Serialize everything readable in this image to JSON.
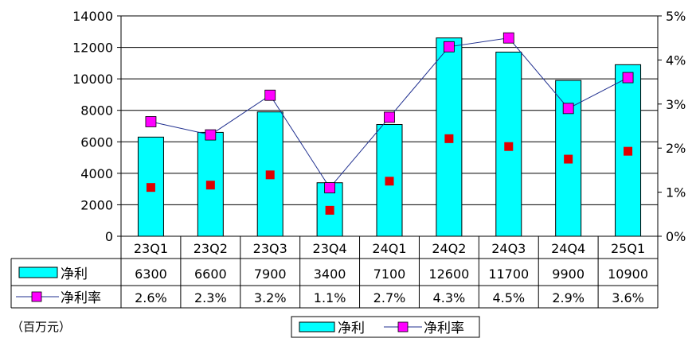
{
  "chart_data": {
    "type": "bar",
    "categories": [
      "23Q1",
      "23Q2",
      "23Q3",
      "23Q4",
      "24Q1",
      "24Q2",
      "24Q3",
      "24Q4",
      "25Q1"
    ],
    "series": [
      {
        "name": "净利",
        "type": "bar",
        "axis": "left",
        "values": [
          6300,
          6600,
          7900,
          3400,
          7100,
          12600,
          11700,
          9900,
          10900
        ],
        "color": "#00FFFF"
      },
      {
        "name": "净利率",
        "type": "line",
        "axis": "right",
        "marker": "square",
        "values": [
          2.6,
          2.3,
          3.2,
          1.1,
          2.7,
          4.3,
          4.5,
          2.9,
          3.6
        ],
        "color": "#FF00FF"
      }
    ],
    "second_markers": {
      "color": "#E00000",
      "axis": "left",
      "values": [
        3100,
        3250,
        3900,
        1650,
        3500,
        6200,
        5700,
        4900,
        5400
      ]
    },
    "table_rows": [
      {
        "label": "净利",
        "values": [
          "6300",
          "6600",
          "7900",
          "3400",
          "7100",
          "12600",
          "11700",
          "9900",
          "10900"
        ]
      },
      {
        "label": "净利率",
        "values": [
          "2.6%",
          "2.3%",
          "3.2%",
          "1.1%",
          "2.7%",
          "4.3%",
          "4.5%",
          "2.9%",
          "3.6%"
        ]
      }
    ],
    "y_left": {
      "min": 0,
      "max": 14000,
      "ticks": [
        0,
        2000,
        4000,
        6000,
        8000,
        10000,
        12000,
        14000
      ]
    },
    "y_right": {
      "min": 0,
      "max": 5,
      "ticks": [
        "0%",
        "1%",
        "2%",
        "3%",
        "4%",
        "5%"
      ]
    },
    "unit_label": "（百万元）",
    "legend": [
      "净利",
      "净利率"
    ],
    "legend_position": "bottom",
    "grid": true
  }
}
